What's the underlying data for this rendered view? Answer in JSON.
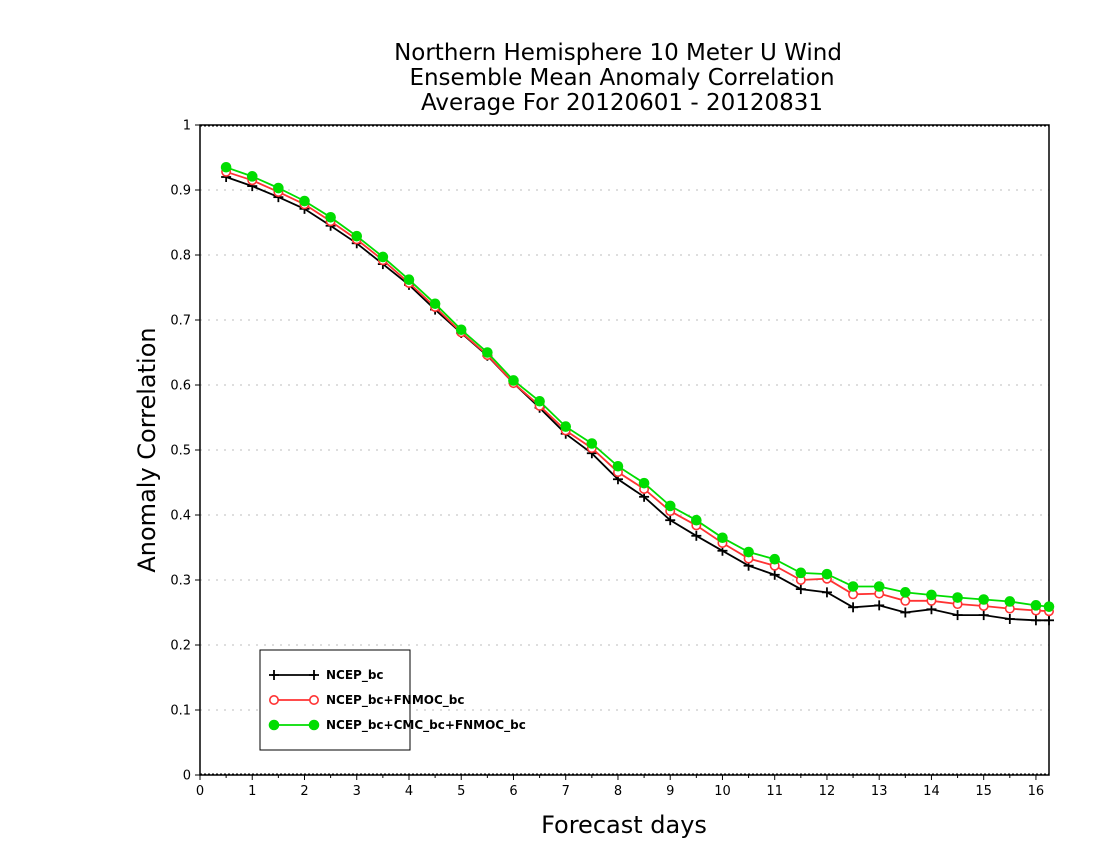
{
  "chart_data": {
    "type": "line",
    "title": [
      "Northern Hemisphere 10 Meter U Wind",
      "Ensemble Mean Anomaly Correlation",
      "Average For 20120601 - 20120831"
    ],
    "xlabel": "Forecast days",
    "ylabel": "Anomaly Correlation",
    "xlim": [
      0,
      16.25
    ],
    "ylim": [
      0,
      1
    ],
    "x_ticks": [
      0,
      1,
      2,
      3,
      4,
      5,
      6,
      7,
      8,
      9,
      10,
      11,
      12,
      13,
      14,
      15,
      16
    ],
    "y_ticks": [
      0,
      0.1,
      0.2,
      0.3,
      0.4,
      0.5,
      0.6,
      0.7,
      0.8,
      0.9,
      1
    ],
    "y_tick_labels": [
      "0",
      "0.1",
      "0.2",
      "0.3",
      "0.4",
      "0.5",
      "0.6",
      "0.7",
      "0.8",
      "0.9",
      "1"
    ],
    "grid": true,
    "legend_position": "bottom-left",
    "x": [
      0.5,
      1,
      1.5,
      2,
      2.5,
      3,
      3.5,
      4,
      4.5,
      5,
      5.5,
      6,
      6.5,
      7,
      7.5,
      8,
      8.5,
      9,
      9.5,
      10,
      10.5,
      11,
      11.5,
      12,
      12.5,
      13,
      13.5,
      14,
      14.5,
      15,
      15.5,
      16,
      16.25
    ],
    "series": [
      {
        "name": "NCEP_bc",
        "color": "#000000",
        "marker": "plus",
        "values": [
          0.92,
          0.906,
          0.889,
          0.871,
          0.845,
          0.818,
          0.786,
          0.754,
          0.716,
          0.68,
          0.645,
          0.603,
          0.565,
          0.525,
          0.495,
          0.455,
          0.428,
          0.392,
          0.368,
          0.345,
          0.322,
          0.308,
          0.286,
          0.281,
          0.258,
          0.261,
          0.25,
          0.255,
          0.246,
          0.246,
          0.24,
          0.238,
          0.238
        ]
      },
      {
        "name": "NCEP_bc+FNMOC_bc",
        "color": "#ff3333",
        "marker": "open-circle",
        "values": [
          0.928,
          0.915,
          0.897,
          0.878,
          0.852,
          0.824,
          0.792,
          0.757,
          0.72,
          0.681,
          0.646,
          0.603,
          0.568,
          0.53,
          0.503,
          0.466,
          0.44,
          0.406,
          0.384,
          0.357,
          0.333,
          0.322,
          0.3,
          0.302,
          0.278,
          0.279,
          0.268,
          0.268,
          0.263,
          0.26,
          0.256,
          0.253,
          0.252
        ]
      },
      {
        "name": "NCEP_bc+CMC_bc+FNMOC_bc",
        "color": "#00dd00",
        "marker": "filled-circle",
        "values": [
          0.935,
          0.921,
          0.903,
          0.883,
          0.858,
          0.829,
          0.797,
          0.762,
          0.725,
          0.685,
          0.65,
          0.607,
          0.575,
          0.536,
          0.51,
          0.475,
          0.449,
          0.414,
          0.392,
          0.365,
          0.343,
          0.332,
          0.311,
          0.309,
          0.29,
          0.29,
          0.281,
          0.277,
          0.273,
          0.27,
          0.267,
          0.261,
          0.259
        ]
      }
    ]
  }
}
